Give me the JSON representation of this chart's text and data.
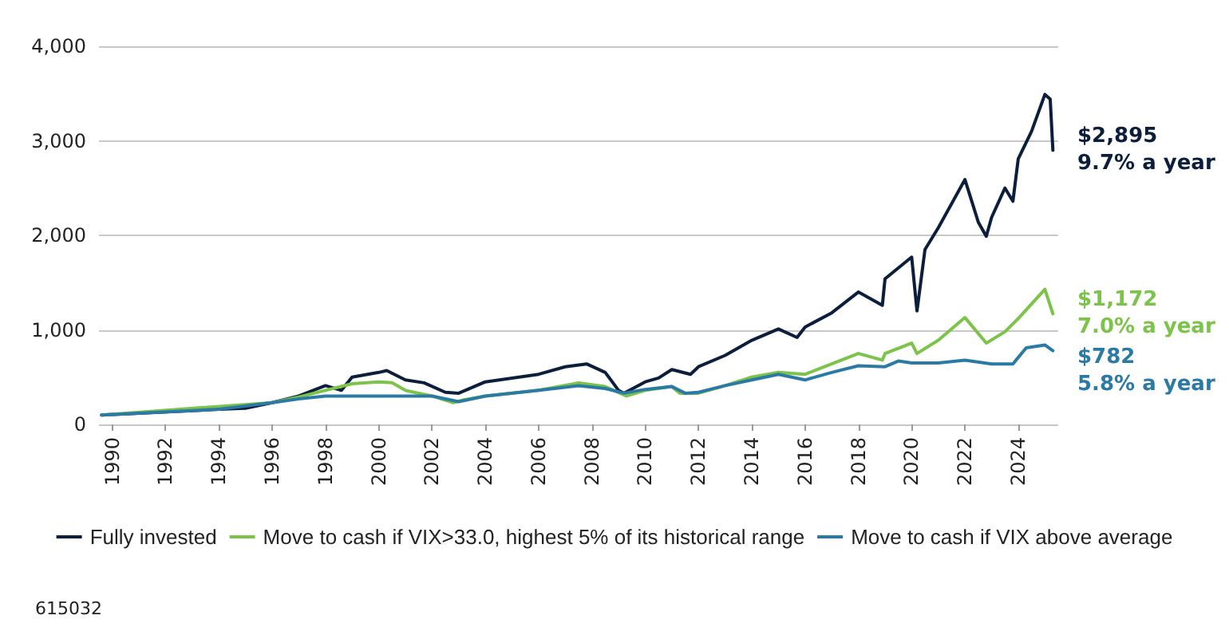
{
  "chart_data": {
    "type": "line",
    "xlim": [
      1989.5,
      2025.5
    ],
    "xticks": [
      1990,
      1992,
      1994,
      1996,
      1998,
      2000,
      2002,
      2004,
      2006,
      2008,
      2010,
      2012,
      2014,
      2016,
      2018,
      2020,
      2022,
      2024
    ],
    "ylim": [
      0,
      4000
    ],
    "yticks": [
      {
        "value": 0,
        "label": "0"
      },
      {
        "value": 1000,
        "label": "1,000"
      },
      {
        "value": 2000,
        "label": "2,000"
      },
      {
        "value": 3000,
        "label": "3,000"
      },
      {
        "value": 4000,
        "label": "4,000"
      }
    ],
    "grid": "y",
    "legend": "bottom",
    "marker": "none",
    "line_style": "solid",
    "series": [
      {
        "name": "Fully invested",
        "color": "#0b1f3d",
        "x": [
          1989.6,
          1994,
          1995,
          1996,
          1997,
          1998,
          1998.6,
          1999,
          2000,
          2000.3,
          2001,
          2001.7,
          2002.5,
          2003,
          2004,
          2005,
          2006,
          2007,
          2007.8,
          2008.5,
          2009,
          2009.2,
          2010,
          2010.5,
          2011,
          2011.7,
          2012,
          2013,
          2014,
          2015,
          2015.7,
          2016,
          2017,
          2018,
          2018.9,
          2019,
          2020,
          2020.2,
          2020.5,
          2021,
          2022,
          2022.5,
          2022.8,
          2023,
          2023.5,
          2023.8,
          2024,
          2024.5,
          2025,
          2025.2,
          2025.3
        ],
        "values": [
          100,
          160,
          170,
          230,
          300,
          410,
          360,
          500,
          550,
          570,
          470,
          440,
          340,
          330,
          450,
          490,
          530,
          610,
          640,
          550,
          360,
          330,
          450,
          490,
          580,
          530,
          610,
          730,
          890,
          1010,
          920,
          1030,
          1180,
          1400,
          1260,
          1540,
          1770,
          1200,
          1850,
          2080,
          2590,
          2140,
          1990,
          2190,
          2500,
          2360,
          2810,
          3100,
          3490,
          3440,
          2900
        ]
      },
      {
        "name": "Move to cash if VIX>33.0, highest 5% of its historical range",
        "color": "#7cc34a",
        "x": [
          1989.6,
          1996,
          1997,
          1998,
          1999,
          2000,
          2000.5,
          2001,
          2002,
          2002.8,
          2003.2,
          2004,
          2006,
          2007.5,
          2008.5,
          2009.3,
          2010,
          2011,
          2011.3,
          2012,
          2013,
          2014,
          2015,
          2016,
          2017,
          2018,
          2018.9,
          2019,
          2020,
          2020.2,
          2021,
          2022,
          2022.8,
          2023.5,
          2024,
          2025,
          2025.3
        ],
        "values": [
          100,
          230,
          290,
          360,
          430,
          450,
          440,
          360,
          300,
          230,
          260,
          300,
          360,
          440,
          400,
          300,
          360,
          400,
          330,
          330,
          410,
          500,
          550,
          530,
          640,
          750,
          680,
          750,
          860,
          750,
          890,
          1130,
          860,
          980,
          1120,
          1430,
          1170
        ]
      },
      {
        "name": "Move to cash if VIX above average",
        "color": "#2b7aa6",
        "x": [
          1989.6,
          1994,
          1996,
          1997,
          1998,
          2000,
          2002,
          2003,
          2004,
          2006,
          2007.5,
          2008.5,
          2009.2,
          2010,
          2011,
          2011.5,
          2012,
          2013,
          2014,
          2015,
          2016,
          2017,
          2018,
          2019,
          2019.5,
          2020,
          2021,
          2022,
          2023,
          2023.8,
          2024.3,
          2025,
          2025.3
        ],
        "values": [
          100,
          160,
          230,
          270,
          300,
          300,
          300,
          240,
          300,
          360,
          410,
          380,
          330,
          370,
          400,
          330,
          340,
          410,
          470,
          530,
          470,
          550,
          620,
          610,
          670,
          650,
          650,
          680,
          640,
          640,
          810,
          840,
          780
        ]
      }
    ],
    "annotations": [
      "$2,895\n9.7% a year",
      "$1,172\n7.0% a year",
      "$782\n5.8% a year",
      "615032"
    ]
  }
}
